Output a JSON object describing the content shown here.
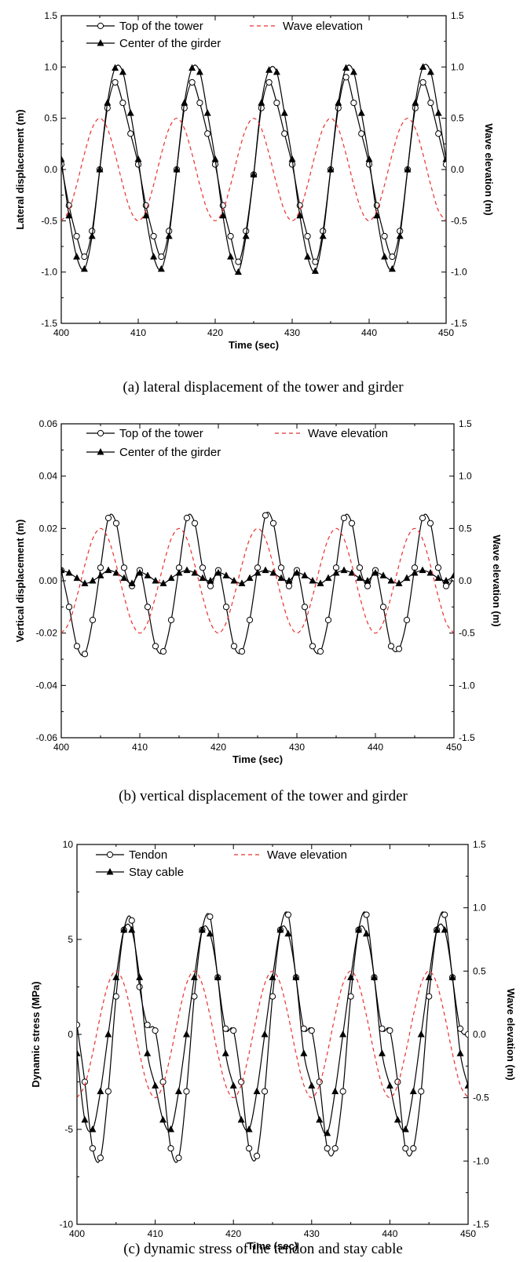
{
  "chart_data": [
    {
      "type": "line",
      "x": [
        400,
        401,
        402,
        403,
        404,
        405,
        406,
        407,
        408,
        409,
        410,
        411,
        412,
        413,
        414,
        415,
        416,
        417,
        418,
        419,
        420,
        421,
        422,
        423,
        424,
        425,
        426,
        427,
        428,
        429,
        430,
        431,
        432,
        433,
        434,
        435,
        436,
        437,
        438,
        439,
        440,
        441,
        442,
        443,
        444,
        445,
        446,
        447,
        448,
        449,
        450
      ],
      "series": [
        {
          "name": "Top of the tower",
          "style": "solid",
          "marker": "circle",
          "color": "#000000",
          "values": [
            0.05,
            -0.35,
            -0.65,
            -0.85,
            -0.6,
            0.0,
            0.6,
            0.85,
            0.65,
            0.35,
            0.05,
            -0.35,
            -0.65,
            -0.85,
            -0.6,
            0.0,
            0.6,
            0.85,
            0.65,
            0.35,
            0.05,
            -0.35,
            -0.65,
            -0.9,
            -0.6,
            -0.05,
            0.6,
            0.85,
            0.65,
            0.35,
            0.05,
            -0.35,
            -0.65,
            -0.9,
            -0.6,
            0.0,
            0.6,
            0.9,
            0.65,
            0.35,
            0.05,
            -0.35,
            -0.65,
            -0.85,
            -0.6,
            0.0,
            0.6,
            0.85,
            0.65,
            0.35,
            0.05
          ]
        },
        {
          "name": "Center of the girder",
          "style": "solid",
          "marker": "triangle",
          "color": "#000000",
          "values": [
            0.1,
            -0.45,
            -0.85,
            -0.97,
            -0.65,
            0.0,
            0.65,
            0.99,
            0.95,
            0.55,
            0.1,
            -0.45,
            -0.85,
            -0.97,
            -0.65,
            0.0,
            0.65,
            0.99,
            0.95,
            0.55,
            0.1,
            -0.45,
            -0.85,
            -1.0,
            -0.65,
            -0.05,
            0.65,
            0.97,
            0.95,
            0.55,
            0.1,
            -0.45,
            -0.85,
            -0.99,
            -0.65,
            0.0,
            0.65,
            0.99,
            0.95,
            0.55,
            0.1,
            -0.45,
            -0.85,
            -0.97,
            -0.65,
            0.0,
            0.65,
            1.0,
            0.95,
            0.55,
            0.1
          ]
        },
        {
          "name": "Wave elevation",
          "style": "dashed",
          "marker": "none",
          "color": "#e8312f",
          "axis": "right",
          "values": [
            -0.5,
            -0.4,
            -0.15,
            0.15,
            0.4,
            0.5,
            0.4,
            0.15,
            -0.15,
            -0.4,
            -0.5,
            -0.4,
            -0.15,
            0.15,
            0.4,
            0.5,
            0.4,
            0.15,
            -0.15,
            -0.4,
            -0.5,
            -0.4,
            -0.15,
            0.15,
            0.4,
            0.5,
            0.4,
            0.15,
            -0.15,
            -0.4,
            -0.5,
            -0.4,
            -0.15,
            0.15,
            0.4,
            0.5,
            0.4,
            0.15,
            -0.15,
            -0.4,
            -0.5,
            -0.4,
            -0.15,
            0.15,
            0.4,
            0.5,
            0.4,
            0.15,
            -0.15,
            -0.4,
            -0.5
          ]
        }
      ],
      "xlabel": "Time (sec)",
      "ylabel": "Lateral displacement (m)",
      "y2label": "Wave elevation (m)",
      "xlim": [
        400,
        450
      ],
      "ylim": [
        -1.5,
        1.5
      ],
      "y2lim": [
        -1.5,
        1.5
      ],
      "xticks": [
        "400",
        "410",
        "420",
        "430",
        "440",
        "450"
      ],
      "yticks": [
        "-1.5",
        "-1.0",
        "-0.5",
        "0.0",
        "0.5",
        "1.0",
        "1.5"
      ],
      "y2ticks": [
        "-1.5",
        "-1.0",
        "-0.5",
        "0.0",
        "0.5",
        "1.0",
        "1.5"
      ],
      "grid": false,
      "legend_position": "top",
      "caption": "(a) lateral displacement of the tower and girder"
    },
    {
      "type": "line",
      "x": [
        400,
        401,
        402,
        403,
        404,
        405,
        406,
        407,
        408,
        409,
        410,
        411,
        412,
        413,
        414,
        415,
        416,
        417,
        418,
        419,
        420,
        421,
        422,
        423,
        424,
        425,
        426,
        427,
        428,
        429,
        430,
        431,
        432,
        433,
        434,
        435,
        436,
        437,
        438,
        439,
        440,
        441,
        442,
        443,
        444,
        445,
        446,
        447,
        448,
        449,
        450
      ],
      "series": [
        {
          "name": "Top of the tower",
          "style": "solid",
          "marker": "circle",
          "color": "#000000",
          "values": [
            0.004,
            -0.01,
            -0.025,
            -0.028,
            -0.015,
            0.005,
            0.024,
            0.022,
            0.005,
            -0.002,
            0.004,
            -0.01,
            -0.025,
            -0.027,
            -0.015,
            0.005,
            0.024,
            0.022,
            0.005,
            -0.002,
            0.004,
            -0.01,
            -0.025,
            -0.027,
            -0.015,
            0.005,
            0.025,
            0.022,
            0.005,
            -0.002,
            0.004,
            -0.01,
            -0.025,
            -0.027,
            -0.015,
            0.005,
            0.024,
            0.022,
            0.005,
            -0.002,
            0.004,
            -0.01,
            -0.025,
            -0.026,
            -0.015,
            0.005,
            0.024,
            0.022,
            0.005,
            -0.002,
            0.001
          ]
        },
        {
          "name": "Center of the girder",
          "style": "solid",
          "marker": "triangle",
          "color": "#000000",
          "values": [
            0.004,
            0.003,
            0.001,
            -0.001,
            0.0,
            0.002,
            0.004,
            0.003,
            0.001,
            -0.001,
            0.003,
            0.002,
            0.0,
            -0.001,
            0.001,
            0.003,
            0.004,
            0.003,
            0.001,
            0.0,
            0.003,
            0.002,
            0.0,
            -0.001,
            0.001,
            0.003,
            0.004,
            0.003,
            0.001,
            0.0,
            0.003,
            0.002,
            0.0,
            -0.001,
            0.001,
            0.003,
            0.004,
            0.003,
            0.001,
            0.0,
            0.003,
            0.002,
            0.0,
            -0.001,
            0.001,
            0.003,
            0.004,
            0.003,
            0.001,
            0.0,
            0.002
          ]
        },
        {
          "name": "Wave elevation",
          "style": "dashed",
          "marker": "none",
          "color": "#e8312f",
          "axis": "right",
          "values": [
            -0.5,
            -0.4,
            -0.15,
            0.15,
            0.4,
            0.5,
            0.4,
            0.15,
            -0.15,
            -0.4,
            -0.5,
            -0.4,
            -0.15,
            0.15,
            0.4,
            0.5,
            0.4,
            0.15,
            -0.15,
            -0.4,
            -0.5,
            -0.4,
            -0.15,
            0.15,
            0.4,
            0.5,
            0.4,
            0.15,
            -0.15,
            -0.4,
            -0.5,
            -0.4,
            -0.15,
            0.15,
            0.4,
            0.5,
            0.4,
            0.15,
            -0.15,
            -0.4,
            -0.5,
            -0.4,
            -0.15,
            0.15,
            0.4,
            0.5,
            0.4,
            0.15,
            -0.15,
            -0.4,
            -0.5
          ]
        }
      ],
      "xlabel": "Time (sec)",
      "ylabel": "Vertical displacement (m)",
      "y2label": "Wave elevation (m)",
      "xlim": [
        400,
        450
      ],
      "ylim": [
        -0.06,
        0.06
      ],
      "y2lim": [
        -1.5,
        1.5
      ],
      "xticks": [
        "400",
        "410",
        "420",
        "430",
        "440",
        "450"
      ],
      "yticks": [
        "-0.06",
        "-0.04",
        "-0.02",
        "0.00",
        "0.02",
        "0.04",
        "0.06"
      ],
      "y2ticks": [
        "-1.5",
        "-1.0",
        "-0.5",
        "0.0",
        "0.5",
        "1.0",
        "1.5"
      ],
      "grid": false,
      "legend_position": "top",
      "caption": "(b) vertical displacement of the tower and girder"
    },
    {
      "type": "line",
      "x": [
        400,
        401,
        402,
        403,
        404,
        405,
        406,
        407,
        408,
        409,
        410,
        411,
        412,
        413,
        414,
        415,
        416,
        417,
        418,
        419,
        420,
        421,
        422,
        423,
        424,
        425,
        426,
        427,
        428,
        429,
        430,
        431,
        432,
        433,
        434,
        435,
        436,
        437,
        438,
        439,
        440,
        441,
        442,
        443,
        444,
        445,
        446,
        447,
        448,
        449,
        450
      ],
      "series": [
        {
          "name": "Tendon",
          "style": "solid",
          "marker": "circle",
          "color": "#000000",
          "values": [
            0.5,
            -2.5,
            -6.0,
            -6.5,
            -3.0,
            2.0,
            5.5,
            6.0,
            2.5,
            0.5,
            0.2,
            -2.5,
            -6.0,
            -6.5,
            -3.0,
            2.0,
            5.5,
            6.2,
            3.0,
            0.3,
            0.2,
            -2.5,
            -6.0,
            -6.4,
            -3.0,
            2.0,
            5.5,
            6.3,
            3.0,
            0.3,
            0.2,
            -2.5,
            -6.0,
            -6.0,
            -3.0,
            2.0,
            5.5,
            6.3,
            3.0,
            0.3,
            0.2,
            -2.5,
            -6.0,
            -6.0,
            -3.0,
            2.0,
            5.5,
            6.3,
            3.0,
            0.3,
            0.0
          ]
        },
        {
          "name": "Stay cable",
          "style": "solid",
          "marker": "triangle",
          "color": "#000000",
          "values": [
            -1.0,
            -4.5,
            -5.0,
            -3.0,
            0.0,
            3.0,
            5.5,
            5.5,
            3.0,
            -1.0,
            -2.7,
            -4.5,
            -5.0,
            -3.0,
            0.0,
            3.0,
            5.5,
            5.3,
            3.0,
            -1.0,
            -2.7,
            -4.5,
            -5.0,
            -3.0,
            0.0,
            3.0,
            5.5,
            5.3,
            3.0,
            -1.0,
            -2.7,
            -4.5,
            -5.2,
            -3.0,
            0.0,
            3.0,
            5.5,
            5.3,
            3.0,
            -1.0,
            -2.7,
            -4.5,
            -5.0,
            -3.0,
            0.0,
            3.0,
            5.5,
            5.5,
            3.0,
            -1.0,
            -2.7
          ]
        },
        {
          "name": "Wave elevation",
          "style": "dashed",
          "marker": "none",
          "color": "#e8312f",
          "axis": "right",
          "values": [
            -0.5,
            -0.4,
            -0.15,
            0.15,
            0.4,
            0.5,
            0.4,
            0.15,
            -0.15,
            -0.4,
            -0.5,
            -0.4,
            -0.15,
            0.15,
            0.4,
            0.5,
            0.4,
            0.15,
            -0.15,
            -0.4,
            -0.5,
            -0.4,
            -0.15,
            0.15,
            0.4,
            0.5,
            0.4,
            0.15,
            -0.15,
            -0.4,
            -0.5,
            -0.4,
            -0.15,
            0.15,
            0.4,
            0.5,
            0.4,
            0.15,
            -0.15,
            -0.4,
            -0.5,
            -0.4,
            -0.15,
            0.15,
            0.4,
            0.5,
            0.4,
            0.15,
            -0.15,
            -0.4,
            -0.5
          ]
        }
      ],
      "xlabel": "Time (sec)",
      "ylabel": "Dynamic stress (MPa)",
      "y2label": "Wave elevation (m)",
      "xlim": [
        400,
        450
      ],
      "ylim": [
        -10,
        10
      ],
      "y2lim": [
        -1.5,
        1.5
      ],
      "xticks": [
        "400",
        "410",
        "420",
        "430",
        "440",
        "450"
      ],
      "yticks": [
        "-10",
        "-5",
        "0",
        "5",
        "10"
      ],
      "y2ticks": [
        "-1.5",
        "-1.0",
        "-0.5",
        "0.0",
        "0.5",
        "1.0",
        "1.5"
      ],
      "grid": false,
      "legend_position": "top",
      "caption": "(c) dynamic stress of the tendon and stay cable"
    }
  ]
}
